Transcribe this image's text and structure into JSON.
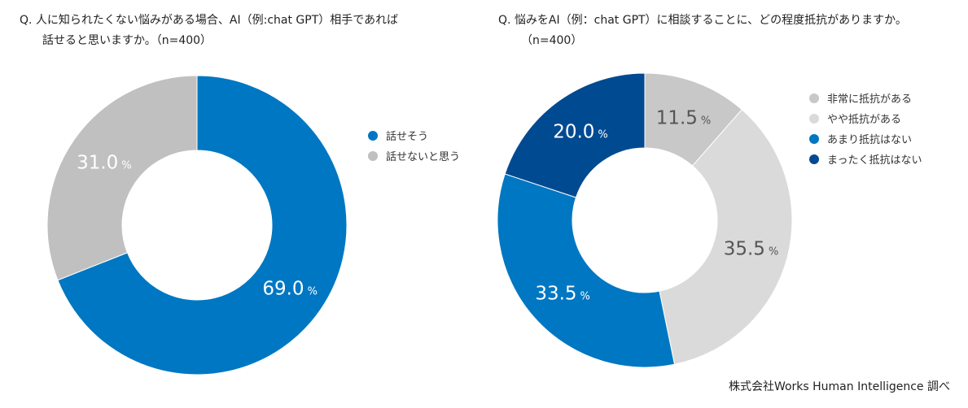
{
  "questions": {
    "q1": {
      "line1": "Q. 人に知られたくない悩みがある場合、AI（例:chat GPT）相手であれば",
      "line2": "話せると思いますか。（n=400）"
    },
    "q2": {
      "line1": "Q. 悩みをAI（例：chat GPT）に相談することに、どの程度抵抗がありますか。",
      "line2": "（n=400）"
    }
  },
  "source": "株式会社Works Human Intelligence 調べ",
  "chart_data": [
    {
      "type": "pie",
      "donut": true,
      "slices": [
        {
          "label": "話せそう",
          "value": 69.0,
          "value_text": "69.0",
          "color": "#0077c2"
        },
        {
          "label": "話せないと思う",
          "value": 31.0,
          "value_text": "31.0",
          "color": "#c0c0c0"
        }
      ],
      "unit": "%",
      "legend_position": "right"
    },
    {
      "type": "pie",
      "donut": true,
      "slices": [
        {
          "label": "非常に抵抗がある",
          "value": 11.5,
          "value_text": "11.5",
          "color": "#c8c8c8"
        },
        {
          "label": "やや抵抗がある",
          "value": 35.5,
          "value_text": "35.5",
          "color": "#dadada"
        },
        {
          "label": "あまり抵抗はない",
          "value": 33.5,
          "value_text": "33.5",
          "color": "#0077c2"
        },
        {
          "label": "まったく抵抗はない",
          "value": 20.0,
          "value_text": "20.0",
          "color": "#004a91"
        }
      ],
      "unit": "%",
      "legend_position": "right"
    }
  ]
}
